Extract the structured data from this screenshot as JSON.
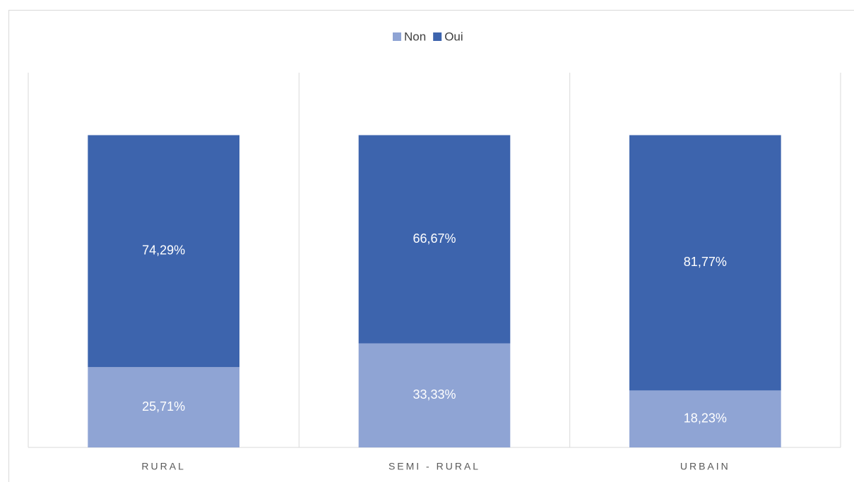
{
  "chart_data": {
    "type": "stacked_bar",
    "categories": [
      "RURAL",
      "SEMI - RURAL",
      "URBAIN"
    ],
    "series": [
      {
        "name": "Non",
        "color": "#8fa4d4",
        "values": [
          25.71,
          33.33,
          18.23
        ],
        "value_labels": [
          "25,71%",
          "33,33%",
          "18,23%"
        ]
      },
      {
        "name": "Oui",
        "color": "#3d64ad",
        "values": [
          74.29,
          66.67,
          81.77
        ],
        "value_labels": [
          "74,29%",
          "66,67%",
          "81,77%"
        ]
      }
    ],
    "ylim": [
      0,
      120
    ],
    "legend": "top"
  }
}
